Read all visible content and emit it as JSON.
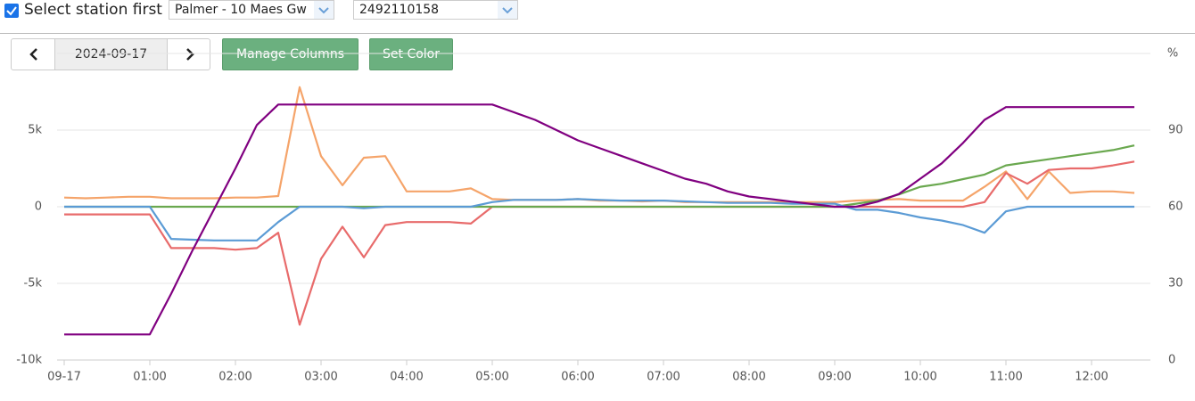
{
  "controls": {
    "checkbox_label": "Select station first",
    "station": "Palmer - 10 Maes Gw",
    "device": "2492110158",
    "date": "2024-09-17",
    "manage_columns": "Manage Columns",
    "set_color": "Set Color"
  },
  "chart_data": {
    "type": "line",
    "y2_label": "%",
    "x": [
      0,
      15,
      30,
      45,
      60,
      75,
      90,
      105,
      120,
      135,
      150,
      165,
      180,
      195,
      210,
      225,
      240,
      255,
      270,
      285,
      300,
      315,
      330,
      345,
      360,
      375,
      390,
      405,
      420,
      435,
      450,
      465,
      480,
      495,
      510,
      525,
      540,
      555,
      570,
      585,
      600,
      615,
      630,
      645,
      660,
      675,
      690,
      705,
      720,
      735,
      750
    ],
    "xlim": [
      0,
      760
    ],
    "xticks": [
      {
        "value": 0,
        "label": "09-17"
      },
      {
        "value": 60,
        "label": "01:00"
      },
      {
        "value": 120,
        "label": "02:00"
      },
      {
        "value": 180,
        "label": "03:00"
      },
      {
        "value": 240,
        "label": "04:00"
      },
      {
        "value": 300,
        "label": "05:00"
      },
      {
        "value": 360,
        "label": "06:00"
      },
      {
        "value": 420,
        "label": "07:00"
      },
      {
        "value": 480,
        "label": "08:00"
      },
      {
        "value": 540,
        "label": "09:00"
      },
      {
        "value": 600,
        "label": "10:00"
      },
      {
        "value": 660,
        "label": "11:00"
      },
      {
        "value": 720,
        "label": "12:00"
      }
    ],
    "ylim": [
      -10000,
      10000
    ],
    "yticks": [
      {
        "value": -10000,
        "label": "-10k"
      },
      {
        "value": -5000,
        "label": "-5k"
      },
      0,
      {
        "value": 5000,
        "label": "5k"
      }
    ],
    "y2lim": [
      0,
      120
    ],
    "y2ticks": [
      0,
      30,
      60,
      90
    ],
    "grid": true,
    "series": [
      {
        "color": "#f5a46a",
        "values": [
          600,
          550,
          600,
          650,
          650,
          550,
          550,
          550,
          600,
          600,
          700,
          7800,
          3300,
          1400,
          3200,
          3300,
          1000,
          1000,
          1000,
          1200,
          500,
          450,
          450,
          450,
          500,
          400,
          400,
          350,
          400,
          300,
          300,
          300,
          300,
          300,
          300,
          300,
          300,
          400,
          450,
          500,
          400,
          400,
          400,
          1300,
          2300,
          500,
          2300,
          900,
          1000,
          1000,
          900
        ]
      },
      {
        "color": "#e86b6b",
        "values": [
          -500,
          -500,
          -500,
          -500,
          -500,
          -2700,
          -2700,
          -2700,
          -2800,
          -2700,
          -1700,
          -7700,
          -3400,
          -1300,
          -3300,
          -1200,
          -1000,
          -1000,
          -1000,
          -1100,
          0,
          0,
          0,
          0,
          0,
          0,
          0,
          0,
          0,
          0,
          0,
          0,
          0,
          0,
          0,
          0,
          0,
          0,
          0,
          0,
          0,
          0,
          0,
          300,
          2200,
          1500,
          2400,
          2500,
          2500,
          2700,
          2950
        ]
      },
      {
        "color": "#6aa84f",
        "values": [
          0,
          0,
          0,
          0,
          0,
          0,
          0,
          0,
          0,
          0,
          0,
          0,
          0,
          0,
          0,
          0,
          0,
          0,
          0,
          0,
          0,
          0,
          0,
          0,
          0,
          0,
          0,
          0,
          0,
          0,
          0,
          0,
          0,
          0,
          0,
          0,
          0,
          200,
          400,
          800,
          1300,
          1500,
          1800,
          2100,
          2700,
          2900,
          3100,
          3300,
          3500,
          3700,
          4000
        ]
      },
      {
        "color": "#5b9bd5",
        "values": [
          0,
          0,
          0,
          0,
          0,
          -2100,
          -2150,
          -2200,
          -2200,
          -2200,
          -1000,
          0,
          0,
          0,
          -100,
          0,
          0,
          0,
          0,
          0,
          300,
          450,
          450,
          450,
          500,
          450,
          400,
          400,
          400,
          350,
          300,
          250,
          250,
          250,
          200,
          200,
          200,
          -200,
          -200,
          -400,
          -700,
          -900,
          -1200,
          -1700,
          -300,
          0,
          0,
          0,
          0,
          0,
          0
        ]
      },
      {
        "color": "#800080",
        "axis": "y2",
        "values": [
          10,
          10,
          10,
          10,
          10,
          26,
          43,
          59,
          75,
          92,
          100,
          100,
          100,
          100,
          100,
          100,
          100,
          100,
          100,
          100,
          100,
          97,
          94,
          90,
          86,
          83,
          80,
          77,
          74,
          71,
          69,
          66,
          64,
          63,
          62,
          61,
          60,
          60,
          62,
          65,
          71,
          77,
          85,
          94,
          99,
          99,
          99,
          99,
          99,
          99,
          99
        ]
      }
    ]
  }
}
